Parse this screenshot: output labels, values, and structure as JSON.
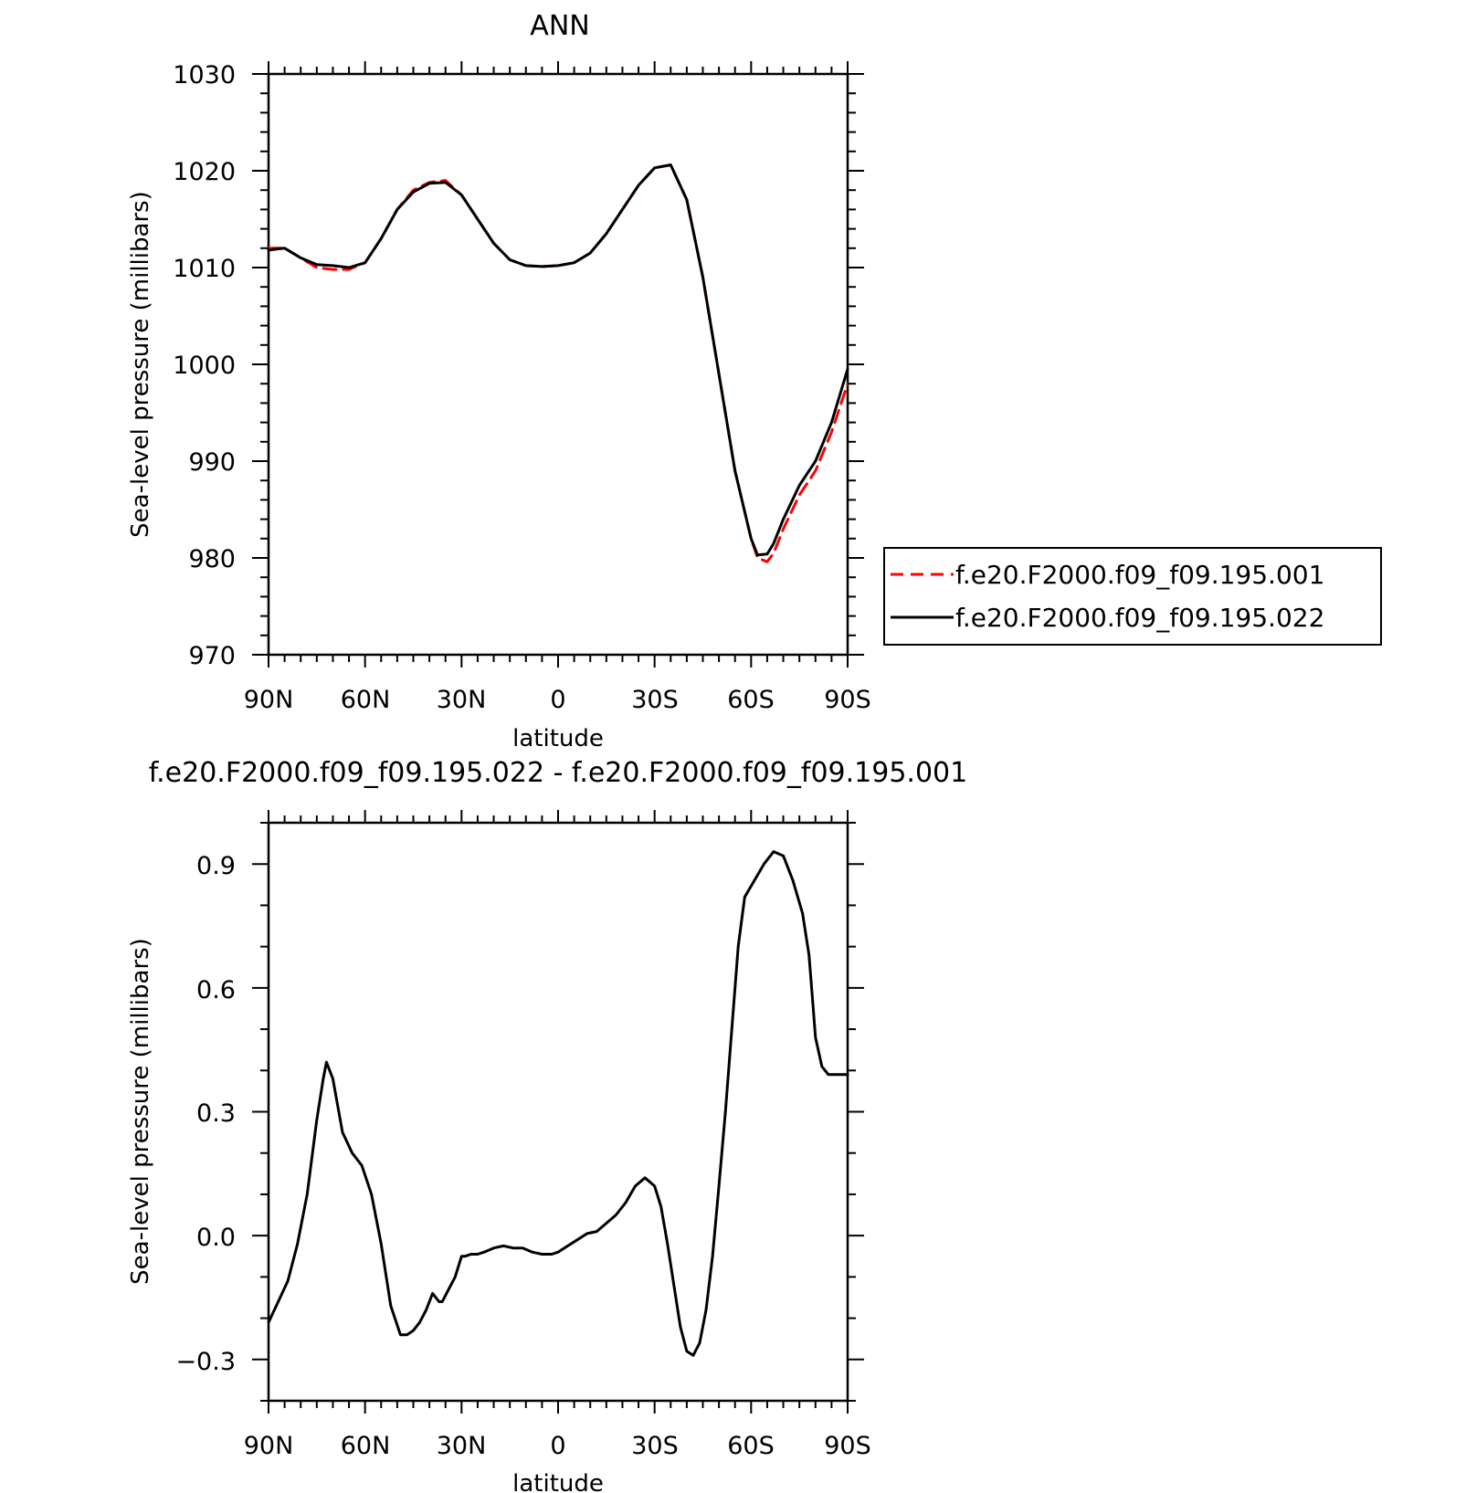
{
  "chart_data": [
    {
      "type": "line",
      "title": "ANN",
      "xlabel": "latitude",
      "ylabel": "Sea-level pressure (millibars)",
      "xlim": [
        90,
        -90
      ],
      "ylim": [
        970,
        1030
      ],
      "grid": false,
      "legend_position": "right",
      "x_tick_labels": [
        "90N",
        "60N",
        "30N",
        "0",
        "30S",
        "60S",
        "90S"
      ],
      "y_tick_labels": [
        "970",
        "980",
        "990",
        "1000",
        "1010",
        "1020",
        "1030"
      ],
      "x": [
        90,
        85,
        80,
        75,
        70,
        65,
        60,
        55,
        50,
        45,
        40,
        35,
        30,
        25,
        20,
        15,
        10,
        5,
        0,
        -5,
        -10,
        -15,
        -20,
        -25,
        -30,
        -35,
        -40,
        -45,
        -50,
        -55,
        -60,
        -62,
        -65,
        -67,
        -70,
        -75,
        -80,
        -85,
        -90
      ],
      "series": [
        {
          "name": "f.e20.F2000.f09_f09.195.001",
          "color": "#ff0000",
          "dash": "dashed",
          "values": [
            1012,
            1012,
            1011,
            1010,
            1009.8,
            1009.8,
            1010.5,
            1013,
            1016,
            1018,
            1018.8,
            1019,
            1017.5,
            1015,
            1012.5,
            1010.8,
            1010.2,
            1010.1,
            1010.2,
            1010.5,
            1011.5,
            1013.5,
            1016,
            1018.5,
            1020.3,
            1020.6,
            1017,
            1009,
            999,
            989,
            982,
            980,
            979.6,
            980.5,
            983,
            986.5,
            989,
            993,
            998
          ]
        },
        {
          "name": "f.e20.F2000.f09_f09.195.022",
          "color": "#000000",
          "dash": "solid",
          "values": [
            1011.8,
            1012,
            1011,
            1010.3,
            1010.2,
            1010,
            1010.5,
            1013,
            1016,
            1017.8,
            1018.7,
            1018.8,
            1017.5,
            1015,
            1012.5,
            1010.8,
            1010.2,
            1010.1,
            1010.2,
            1010.5,
            1011.5,
            1013.5,
            1016,
            1018.5,
            1020.3,
            1020.6,
            1017,
            1009,
            999,
            989,
            982,
            980.3,
            980.4,
            981.5,
            984,
            987.5,
            990,
            994,
            999.5
          ]
        }
      ]
    },
    {
      "type": "line",
      "title": "f.e20.F2000.f09_f09.195.022 - f.e20.F2000.f09_f09.195.001",
      "xlabel": "latitude",
      "ylabel": "Sea-level pressure (millibars)",
      "xlim": [
        90,
        -90
      ],
      "ylim": [
        -0.4,
        1.0
      ],
      "grid": false,
      "x_tick_labels": [
        "90N",
        "60N",
        "30N",
        "0",
        "30S",
        "60S",
        "90S"
      ],
      "y_tick_labels": [
        "−0.3",
        "0.0",
        "0.3",
        "0.6",
        "0.9"
      ],
      "x": [
        90,
        87,
        84,
        81,
        78,
        75,
        73,
        72,
        70,
        67,
        64,
        61,
        58,
        55,
        52,
        49,
        47,
        45,
        43,
        41,
        39,
        37,
        36,
        34,
        32,
        30,
        29,
        27,
        25,
        23,
        20,
        17,
        14,
        11,
        8,
        5,
        2,
        0,
        -3,
        -6,
        -9,
        -12,
        -15,
        -18,
        -21,
        -24,
        -27,
        -30,
        -32,
        -34,
        -36,
        -38,
        -40,
        -42,
        -44,
        -46,
        -48,
        -50,
        -52,
        -54,
        -56,
        -58,
        -61,
        -64,
        -67,
        -70,
        -73,
        -76,
        -78,
        -79,
        -80,
        -82,
        -84,
        -86,
        -88,
        -89,
        -90
      ],
      "series": [
        {
          "name": "",
          "color": "#000000",
          "dash": "solid",
          "values": [
            -0.21,
            -0.16,
            -0.11,
            -0.02,
            0.1,
            0.28,
            0.38,
            0.42,
            0.38,
            0.25,
            0.2,
            0.17,
            0.1,
            -0.02,
            -0.17,
            -0.24,
            -0.24,
            -0.23,
            -0.21,
            -0.18,
            -0.14,
            -0.16,
            -0.16,
            -0.13,
            -0.1,
            -0.05,
            -0.05,
            -0.045,
            -0.045,
            -0.04,
            -0.03,
            -0.025,
            -0.03,
            -0.03,
            -0.04,
            -0.045,
            -0.045,
            -0.04,
            -0.025,
            -0.01,
            0.005,
            0.01,
            0.03,
            0.05,
            0.08,
            0.12,
            0.14,
            0.12,
            0.07,
            -0.02,
            -0.12,
            -0.22,
            -0.28,
            -0.29,
            -0.26,
            -0.18,
            -0.05,
            0.12,
            0.3,
            0.5,
            0.7,
            0.82,
            0.86,
            0.9,
            0.93,
            0.92,
            0.86,
            0.78,
            0.68,
            0.58,
            0.48,
            0.41,
            0.39,
            0.39,
            0.39,
            0.39,
            0.39
          ]
        }
      ]
    }
  ]
}
